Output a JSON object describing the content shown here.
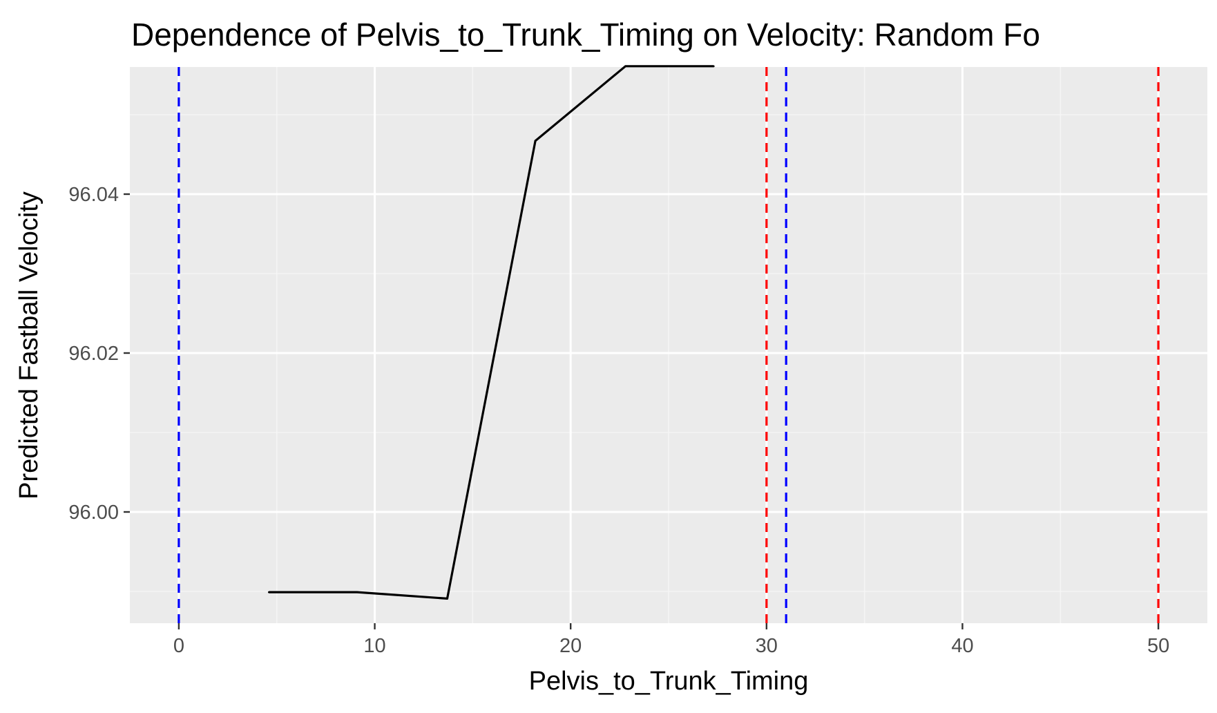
{
  "chart_data": {
    "type": "line",
    "title": "Dependence of Pelvis_to_Trunk_Timing on Velocity: Random Fo",
    "xlabel": "Pelvis_to_Trunk_Timing",
    "ylabel": "Predicted Fastball Velocity",
    "xlim": [
      -2.5,
      52.5
    ],
    "ylim": [
      95.986,
      96.056
    ],
    "x_ticks": [
      0,
      10,
      20,
      30,
      40,
      50
    ],
    "x_tick_labels": [
      "0",
      "10",
      "20",
      "30",
      "40",
      "50"
    ],
    "y_ticks": [
      96.0,
      96.02,
      96.04
    ],
    "y_tick_labels": [
      "96.00",
      "96.02",
      "96.04"
    ],
    "grid": true,
    "legend": "none",
    "series": [
      {
        "color": "#000000",
        "x": [
          4.6,
          9.1,
          13.7,
          18.2,
          22.8,
          27.3
        ],
        "y": [
          95.9899,
          95.9899,
          95.9891,
          96.0467,
          96.0561,
          96.0561
        ]
      }
    ],
    "vlines": [
      {
        "x": 0,
        "color": "#0000ff",
        "linetype": "dashed"
      },
      {
        "x": 30,
        "color": "#ff0000",
        "linetype": "dashed"
      },
      {
        "x": 31,
        "color": "#0000ff",
        "linetype": "dashed"
      },
      {
        "x": 50,
        "color": "#ff0000",
        "linetype": "dashed"
      }
    ],
    "colors": {
      "panel_background": "#ebebeb",
      "grid_major": "#ffffff",
      "grid_minor": "#f5f5f5",
      "axis_ticks": "#333333"
    }
  }
}
